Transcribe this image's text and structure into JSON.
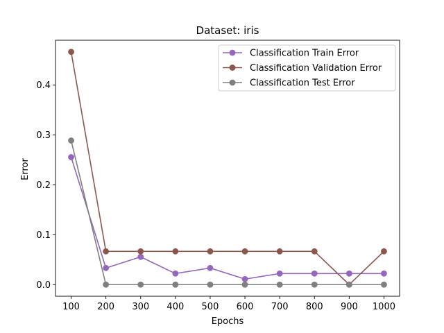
{
  "chart_data": {
    "type": "line",
    "title": "Dataset: iris",
    "xlabel": "Epochs",
    "ylabel": "Error",
    "x": [
      100,
      200,
      300,
      400,
      500,
      600,
      700,
      800,
      900,
      1000
    ],
    "xticks": [
      "100",
      "200",
      "300",
      "400",
      "500",
      "600",
      "700",
      "800",
      "900",
      "1000"
    ],
    "yticks": [
      "0.0",
      "0.1",
      "0.2",
      "0.3",
      "0.4"
    ],
    "ytick_values": [
      0.0,
      0.1,
      0.2,
      0.3,
      0.4
    ],
    "xlim": [
      55,
      1045
    ],
    "ylim": [
      -0.0233,
      0.49
    ],
    "grid": false,
    "legend_position": "top-right",
    "series": [
      {
        "name": "Classification Train Error",
        "color": "#9467bd",
        "values": [
          0.2556,
          0.0333,
          0.0556,
          0.0222,
          0.0333,
          0.0111,
          0.0222,
          0.0222,
          0.0222,
          0.0222
        ]
      },
      {
        "name": "Classification Validation Error",
        "color": "#8c564b",
        "values": [
          0.4667,
          0.0667,
          0.0667,
          0.0667,
          0.0667,
          0.0667,
          0.0667,
          0.0667,
          0.0,
          0.0667
        ]
      },
      {
        "name": "Classification Test Error",
        "color": "#7f7f7f",
        "values": [
          0.2889,
          0.0,
          0.0,
          0.0,
          0.0,
          0.0,
          0.0,
          0.0,
          0.0,
          0.0
        ]
      }
    ]
  }
}
